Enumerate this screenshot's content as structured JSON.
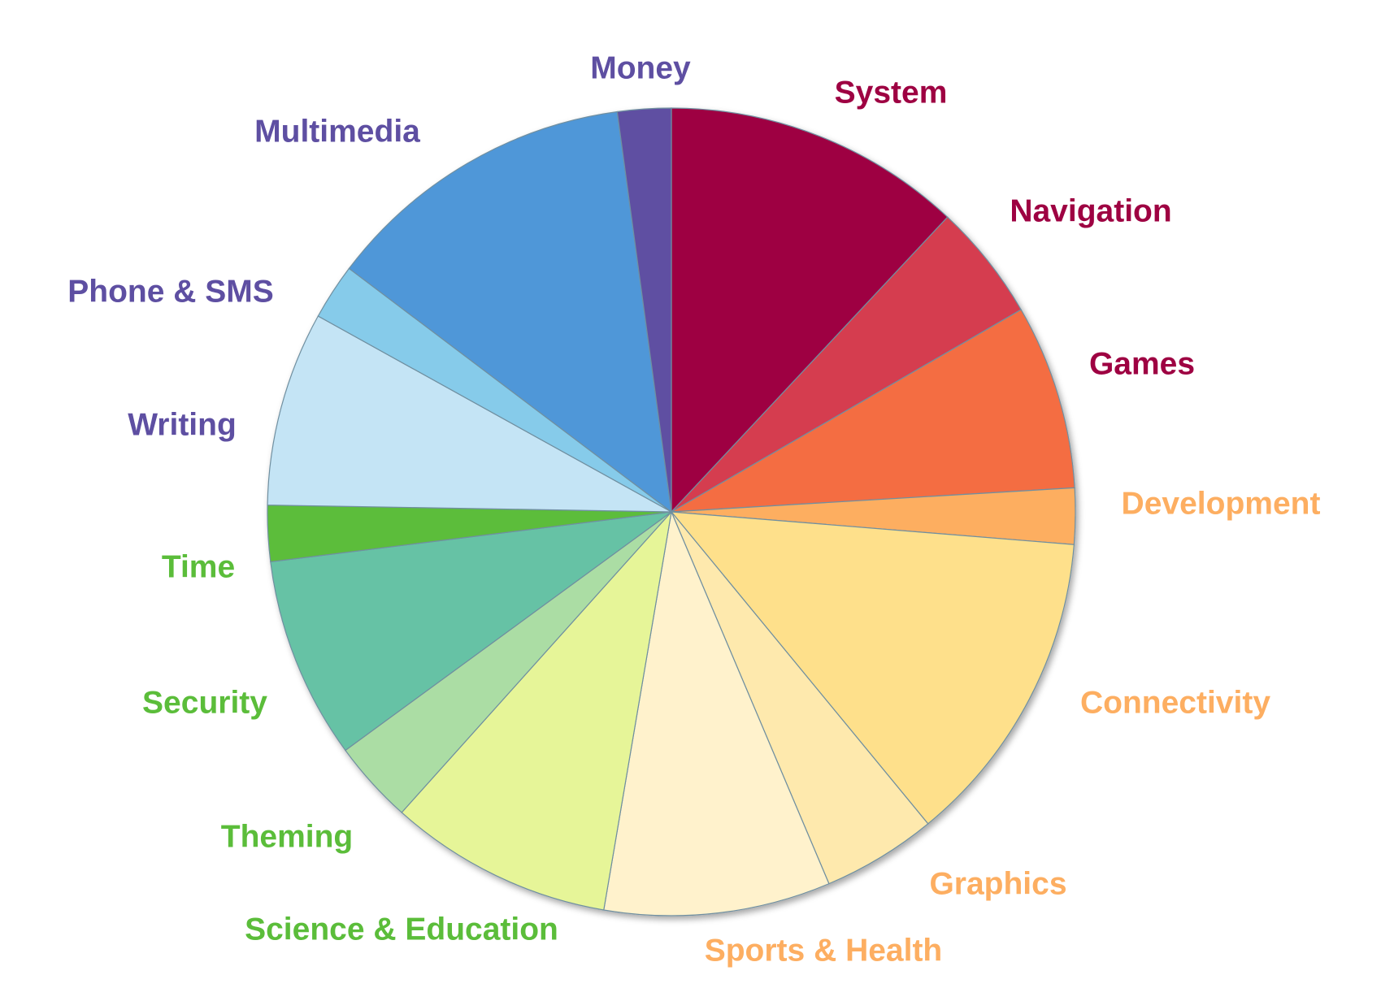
{
  "chart_data": {
    "type": "pie",
    "title": "",
    "slices": [
      {
        "label": "System",
        "value": 12.3,
        "color": "#9e0142"
      },
      {
        "label": "Navigation",
        "value": 4.8,
        "color": "#d53e4f"
      },
      {
        "label": "Games",
        "value": 7.6,
        "color": "#f46d43"
      },
      {
        "label": "Development",
        "value": 2.3,
        "color": "#fdae61"
      },
      {
        "label": "Connectivity",
        "value": 13.1,
        "color": "#fee08b"
      },
      {
        "label": "Graphics",
        "value": 4.7,
        "color": "#fee9ad"
      },
      {
        "label": "Sports & Health",
        "value": 9.3,
        "color": "#fff2cc"
      },
      {
        "label": "Science & Education",
        "value": 9.2,
        "color": "#e6f598"
      },
      {
        "label": "Theming",
        "value": 3.4,
        "color": "#abdda4"
      },
      {
        "label": "Security",
        "value": 8.3,
        "color": "#66c2a5"
      },
      {
        "label": "Time",
        "value": 2.3,
        "color": "#5bbd3a"
      },
      {
        "label": "Writing",
        "value": 8.0,
        "color": "#c4e4f5"
      },
      {
        "label": "Phone & SMS",
        "value": 2.3,
        "color": "#86cbea"
      },
      {
        "label": "Multimedia",
        "value": 12.9,
        "color": "#5097d8"
      },
      {
        "label": "Money",
        "value": 2.2,
        "color": "#5e4fa2"
      }
    ],
    "label_colors": {
      "System": "#9e0142",
      "Navigation": "#9e0142",
      "Games": "#9e0142",
      "Development": "#fdae61",
      "Connectivity": "#fdae61",
      "Graphics": "#fdae61",
      "Sports & Health": "#fdae61",
      "Science & Education": "#5bbd3a",
      "Theming": "#5bbd3a",
      "Security": "#5bbd3a",
      "Time": "#5bbd3a",
      "Writing": "#5e4fa2",
      "Phone & SMS": "#5e4fa2",
      "Multimedia": "#5e4fa2",
      "Money": "#5e4fa2"
    },
    "start_angle_deg": 0,
    "direction": "clockwise",
    "legend": "none"
  }
}
